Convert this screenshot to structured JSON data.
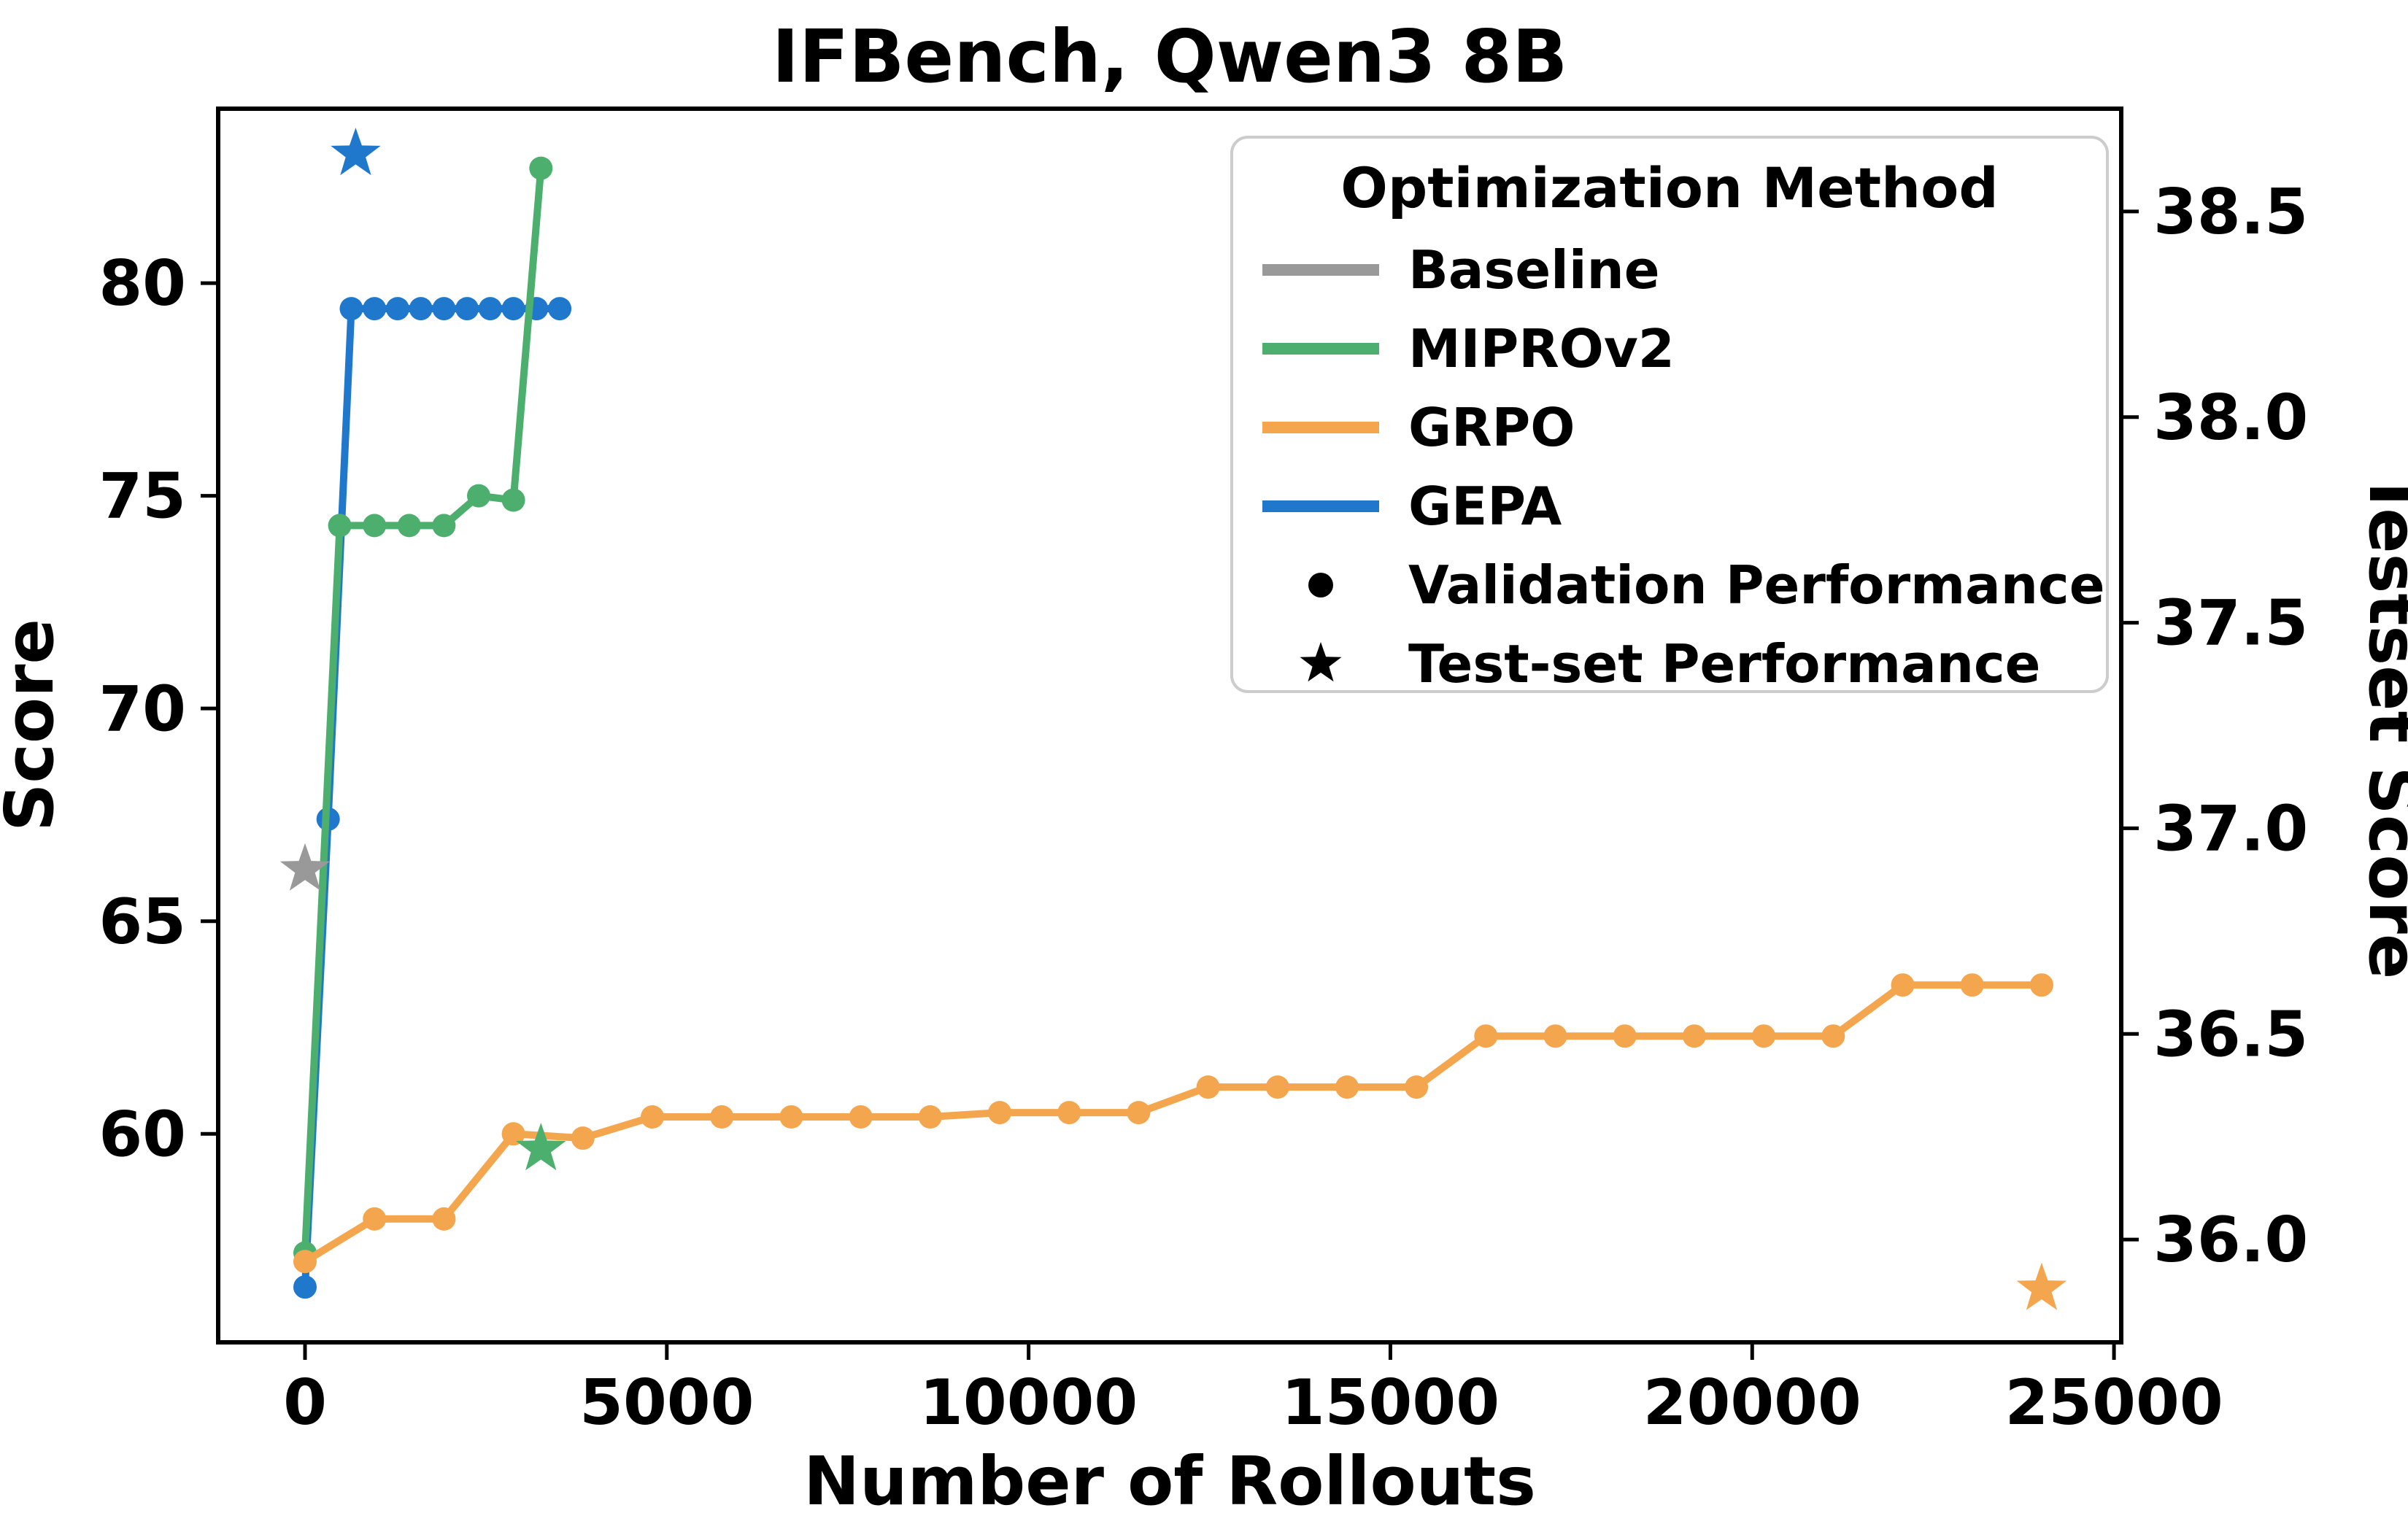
{
  "figure": {
    "title": "IFBench, Qwen3 8B",
    "xlabel": "Number of Rollouts",
    "ylabel_left": "Score",
    "ylabel_right": "Testset Score"
  },
  "legend": {
    "title": "Optimization Method",
    "items": [
      {
        "label": "Baseline",
        "swatch": "line",
        "color": "#999999"
      },
      {
        "label": "MIPROv2",
        "swatch": "line",
        "color": "#4CAF6E"
      },
      {
        "label": "GRPO",
        "swatch": "line",
        "color": "#F3A64D"
      },
      {
        "label": "GEPA",
        "swatch": "line",
        "color": "#1F78CC"
      },
      {
        "label": "Validation Performance",
        "swatch": "dot-marker",
        "color": "#000000"
      },
      {
        "label": "Test-set Performance",
        "swatch": "star-marker",
        "color": "#000000"
      }
    ]
  },
  "chart_data": {
    "type": "line",
    "title": "IFBench, Qwen3 8B",
    "xlabel": "Number of Rollouts",
    "ylabel_left": "Score",
    "ylabel_right": "Testset Score",
    "xlim": [
      -1200,
      25100
    ],
    "ylim_left": [
      55.1,
      84.1
    ],
    "ylim_right": [
      35.75,
      38.75
    ],
    "x_ticks": [
      0,
      5000,
      10000,
      15000,
      20000,
      25000
    ],
    "y_ticks_left": [
      60,
      65,
      70,
      75,
      80
    ],
    "y_ticks_right": [
      36.0,
      36.5,
      37.0,
      37.5,
      38.0,
      38.5
    ],
    "grid": false,
    "legend_position": "upper right",
    "marker_note": "circles = validation performance (left axis), stars = test-set performance (right axis)",
    "series": [
      {
        "name": "GEPA",
        "color": "#1F78CC",
        "axis": "left",
        "marker": "circle",
        "points": [
          [
            0,
            56.4
          ],
          [
            320,
            67.4
          ],
          [
            640,
            79.4
          ],
          [
            960,
            79.4
          ],
          [
            1280,
            79.4
          ],
          [
            1600,
            79.4
          ],
          [
            1920,
            79.4
          ],
          [
            2240,
            79.4
          ],
          [
            2560,
            79.4
          ],
          [
            2880,
            79.4
          ],
          [
            3200,
            79.4
          ],
          [
            3520,
            79.4
          ]
        ]
      },
      {
        "name": "MIPROv2",
        "color": "#4CAF6E",
        "axis": "left",
        "marker": "circle",
        "points": [
          [
            0,
            57.2
          ],
          [
            480,
            74.3
          ],
          [
            960,
            74.3
          ],
          [
            1440,
            74.3
          ],
          [
            1920,
            74.3
          ],
          [
            2400,
            75.0
          ],
          [
            2880,
            74.9
          ],
          [
            3260,
            82.7
          ]
        ]
      },
      {
        "name": "GRPO",
        "color": "#F3A64D",
        "axis": "left",
        "marker": "circle",
        "points": [
          [
            0,
            57.0
          ],
          [
            960,
            58.0
          ],
          [
            1920,
            58.0
          ],
          [
            2880,
            60.0
          ],
          [
            3840,
            59.9
          ],
          [
            4800,
            60.4
          ],
          [
            5760,
            60.4
          ],
          [
            6720,
            60.4
          ],
          [
            7680,
            60.4
          ],
          [
            8640,
            60.4
          ],
          [
            9600,
            60.5
          ],
          [
            10560,
            60.5
          ],
          [
            11520,
            60.5
          ],
          [
            12480,
            61.1
          ],
          [
            13440,
            61.1
          ],
          [
            14400,
            61.1
          ],
          [
            15360,
            61.1
          ],
          [
            16320,
            62.3
          ],
          [
            17280,
            62.3
          ],
          [
            18240,
            62.3
          ],
          [
            19200,
            62.3
          ],
          [
            20160,
            62.3
          ],
          [
            21120,
            62.3
          ],
          [
            22080,
            63.5
          ],
          [
            23040,
            63.5
          ],
          [
            24000,
            63.5
          ]
        ]
      }
    ],
    "test_points": [
      {
        "name": "Baseline",
        "color": "#999999",
        "x": 0,
        "testset_score": 36.9
      },
      {
        "name": "GEPA",
        "color": "#1F78CC",
        "x": 700,
        "testset_score": 38.64
      },
      {
        "name": "MIPROv2",
        "color": "#4CAF6E",
        "x": 3260,
        "testset_score": 36.22
      },
      {
        "name": "GRPO",
        "color": "#F3A64D",
        "x": 24000,
        "testset_score": 35.88
      }
    ]
  }
}
